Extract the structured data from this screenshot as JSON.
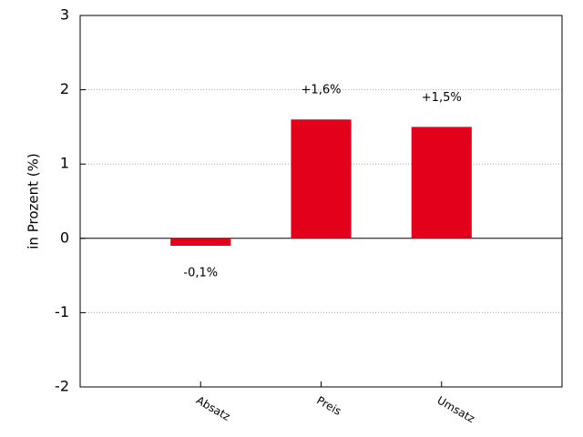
{
  "chart_data": {
    "type": "bar",
    "y_label": "in Prozent (%)",
    "categories": [
      "Absatz",
      "Preis",
      "Umsatz"
    ],
    "values": [
      -0.1,
      1.6,
      1.5
    ],
    "value_labels": [
      "-0,1%",
      "+1,6%",
      "+1,5%"
    ],
    "color": "#e2001a",
    "ylim": [
      -2,
      3
    ],
    "yticks": [
      -2,
      -1,
      0,
      1,
      2,
      3
    ],
    "grid": true
  }
}
